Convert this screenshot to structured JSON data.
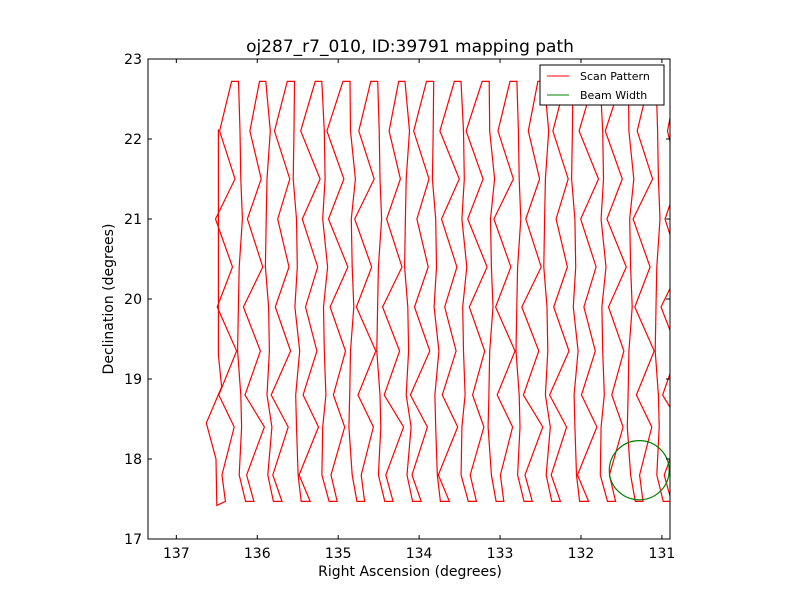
{
  "chart_data": {
    "type": "line",
    "title": "oj287_r7_010, ID:39791 mapping path",
    "xlabel": "Right Ascension (degrees)",
    "ylabel": "Declination (degrees)",
    "xlim": [
      137.35,
      130.9
    ],
    "ylim": [
      17,
      23
    ],
    "x_inverted": true,
    "xticks": [
      137,
      136,
      135,
      134,
      133,
      132,
      131
    ],
    "yticks": [
      17,
      18,
      19,
      20,
      21,
      22,
      23
    ],
    "grid": false,
    "legend_position": "top-right",
    "series": [
      {
        "name": "Scan Pattern",
        "color": "#ff0000",
        "kind": "serpentine-scan",
        "ra_start": 136.48,
        "ra_step": 0.172,
        "num_legs": 42,
        "dec_start": 22.12,
        "dec_low": 17.42,
        "dec_high": 22.75,
        "dec_turn_low": 17.47,
        "dec_turn_high": 22.72
      },
      {
        "name": "Beam Width",
        "color": "#008000",
        "kind": "circle",
        "center_ra": 131.28,
        "center_dec": 17.86,
        "radius_deg": 0.37
      }
    ]
  }
}
